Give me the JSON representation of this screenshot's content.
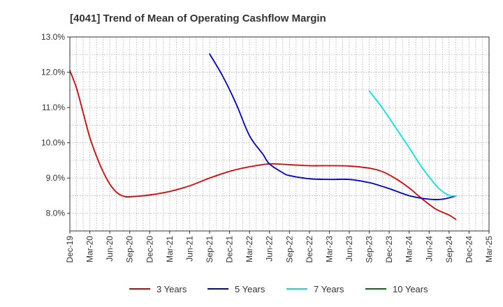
{
  "chart_data": {
    "type": "line",
    "title": "[4041]  Trend of Mean of Operating Cashflow Margin",
    "xlabel": "",
    "ylabel": "",
    "x_ticks": [
      "Dec-19",
      "Mar-20",
      "Jun-20",
      "Sep-20",
      "Dec-20",
      "Mar-21",
      "Jun-21",
      "Sep-21",
      "Dec-21",
      "Mar-22",
      "Jun-22",
      "Sep-22",
      "Dec-22",
      "Mar-23",
      "Jun-23",
      "Sep-23",
      "Dec-23",
      "Mar-24",
      "Jun-24",
      "Sep-24",
      "Dec-24",
      "Mar-25"
    ],
    "y_ticks": [
      "8.0%",
      "9.0%",
      "10.0%",
      "11.0%",
      "12.0%",
      "13.0%"
    ],
    "y_tick_values": [
      8.0,
      9.0,
      10.0,
      11.0,
      12.0,
      13.0
    ],
    "ylim": [
      7.5,
      13.0
    ],
    "grid": true,
    "legend_position": "bottom",
    "series": [
      {
        "name": "3 Years",
        "color": "#dd0000",
        "points": [
          [
            "Dec-19",
            12.05
          ],
          [
            "Jan-20",
            11.55
          ],
          [
            "Feb-20",
            10.85
          ],
          [
            "Mar-20",
            10.15
          ],
          [
            "Apr-20",
            9.62
          ],
          [
            "May-20",
            9.18
          ],
          [
            "Jun-20",
            8.83
          ],
          [
            "Jul-20",
            8.6
          ],
          [
            "Aug-20",
            8.49
          ],
          [
            "Sep-20",
            8.47
          ],
          [
            "Dec-20",
            8.52
          ],
          [
            "Mar-21",
            8.62
          ],
          [
            "Jun-21",
            8.78
          ],
          [
            "Sep-21",
            9.0
          ],
          [
            "Dec-21",
            9.19
          ],
          [
            "Mar-22",
            9.32
          ],
          [
            "Jun-22",
            9.4
          ],
          [
            "Sep-22",
            9.38
          ],
          [
            "Dec-22",
            9.35
          ],
          [
            "Mar-23",
            9.35
          ],
          [
            "Jun-23",
            9.34
          ],
          [
            "Sep-23",
            9.28
          ],
          [
            "Nov-23",
            9.18
          ],
          [
            "Jan-24",
            8.98
          ],
          [
            "Mar-24",
            8.72
          ],
          [
            "May-24",
            8.4
          ],
          [
            "Jul-24",
            8.12
          ],
          [
            "Sep-24",
            7.95
          ],
          [
            "Oct-24",
            7.83
          ]
        ]
      },
      {
        "name": "5 Years",
        "color": "#0000cc",
        "points": [
          [
            "Sep-21",
            12.52
          ],
          [
            "Nov-21",
            11.88
          ],
          [
            "Jan-22",
            11.1
          ],
          [
            "Mar-22",
            10.2
          ],
          [
            "May-22",
            9.68
          ],
          [
            "Jun-22",
            9.4
          ],
          [
            "Aug-22",
            9.15
          ],
          [
            "Sep-22",
            9.07
          ],
          [
            "Dec-22",
            8.98
          ],
          [
            "Mar-23",
            8.96
          ],
          [
            "Jun-23",
            8.96
          ],
          [
            "Sep-23",
            8.87
          ],
          [
            "Dec-23",
            8.7
          ],
          [
            "Mar-24",
            8.5
          ],
          [
            "Jun-24",
            8.4
          ],
          [
            "Aug-24",
            8.4
          ],
          [
            "Oct-24",
            8.49
          ]
        ]
      },
      {
        "name": "7 Years",
        "color": "#00e5e5",
        "points": [
          [
            "Sep-23",
            11.47
          ],
          [
            "Nov-23",
            10.98
          ],
          [
            "Jan-24",
            10.42
          ],
          [
            "Mar-24",
            9.86
          ],
          [
            "May-24",
            9.28
          ],
          [
            "Jul-24",
            8.8
          ],
          [
            "Aug-24",
            8.62
          ],
          [
            "Sep-24",
            8.51
          ],
          [
            "Oct-24",
            8.49
          ]
        ]
      },
      {
        "name": "10 Years",
        "color": "#007700",
        "points": []
      }
    ]
  }
}
